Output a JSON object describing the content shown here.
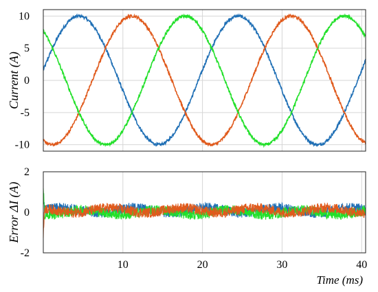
{
  "colors": {
    "phase_a": "#1f6fb5",
    "phase_b": "#e05a1c",
    "phase_c": "#22e02a",
    "grid": "#d6d6d6"
  },
  "chart_data": [
    {
      "type": "line",
      "ylabel": "Current (A)",
      "xlim": [
        0,
        40.5
      ],
      "ylim": [
        -11,
        11
      ],
      "yticks": [
        10,
        5,
        0,
        -5,
        -10
      ],
      "ytick_labels": [
        "10",
        "5",
        "0",
        "-5",
        "-10"
      ],
      "grid": true,
      "legend": "none",
      "frequency_hz": 50,
      "amplitude": 10,
      "series": [
        {
          "color_key": "phase_a",
          "x": [
            0,
            5,
            10,
            15,
            20,
            25,
            30,
            35,
            40
          ],
          "y": [
            1.6,
            10,
            -1.6,
            -10,
            1.6,
            10,
            -1.6,
            -10,
            1.6
          ]
        },
        {
          "color_key": "phase_b",
          "x": [
            0,
            1.6,
            6.7,
            11.7,
            16.6,
            21.6,
            26.7,
            31.7,
            36.6,
            40.5
          ],
          "y": [
            -8.7,
            -10,
            0,
            10,
            0,
            -10,
            0,
            10,
            0,
            -9.5
          ]
        },
        {
          "color_key": "phase_c",
          "x": [
            0,
            3.3,
            8.3,
            13.3,
            18.3,
            23.3,
            28.3,
            33.3,
            38.3,
            40.5
          ],
          "y": [
            7.9,
            0,
            -10,
            0,
            10,
            0,
            -10,
            0,
            10,
            8.4
          ]
        }
      ]
    },
    {
      "type": "line",
      "ylabel": "Error ΔI (A)",
      "xlabel": "Time (ms)",
      "xlim": [
        0,
        40.5
      ],
      "ylim": [
        -2,
        2
      ],
      "xticks": [
        10,
        20,
        30,
        40
      ],
      "xtick_labels": [
        "10",
        "20",
        "30",
        "40"
      ],
      "yticks": [
        2,
        0,
        -2
      ],
      "ytick_labels": [
        "2",
        "0",
        "-2"
      ],
      "grid": true,
      "legend": "none",
      "noise_amplitude": 0.25,
      "series": [
        {
          "color_key": "phase_a",
          "x": [
            0,
            10,
            20,
            30,
            40
          ],
          "y": [
            0.1,
            0.1,
            0.1,
            0.1,
            0.1
          ]
        },
        {
          "color_key": "phase_b",
          "x": [
            0,
            10,
            20,
            30,
            40
          ],
          "y": [
            0.1,
            0.1,
            0.1,
            0.1,
            0.1
          ]
        },
        {
          "color_key": "phase_c",
          "x": [
            0,
            10,
            20,
            30,
            40
          ],
          "y": [
            0,
            0,
            0,
            0,
            0
          ]
        }
      ]
    }
  ]
}
